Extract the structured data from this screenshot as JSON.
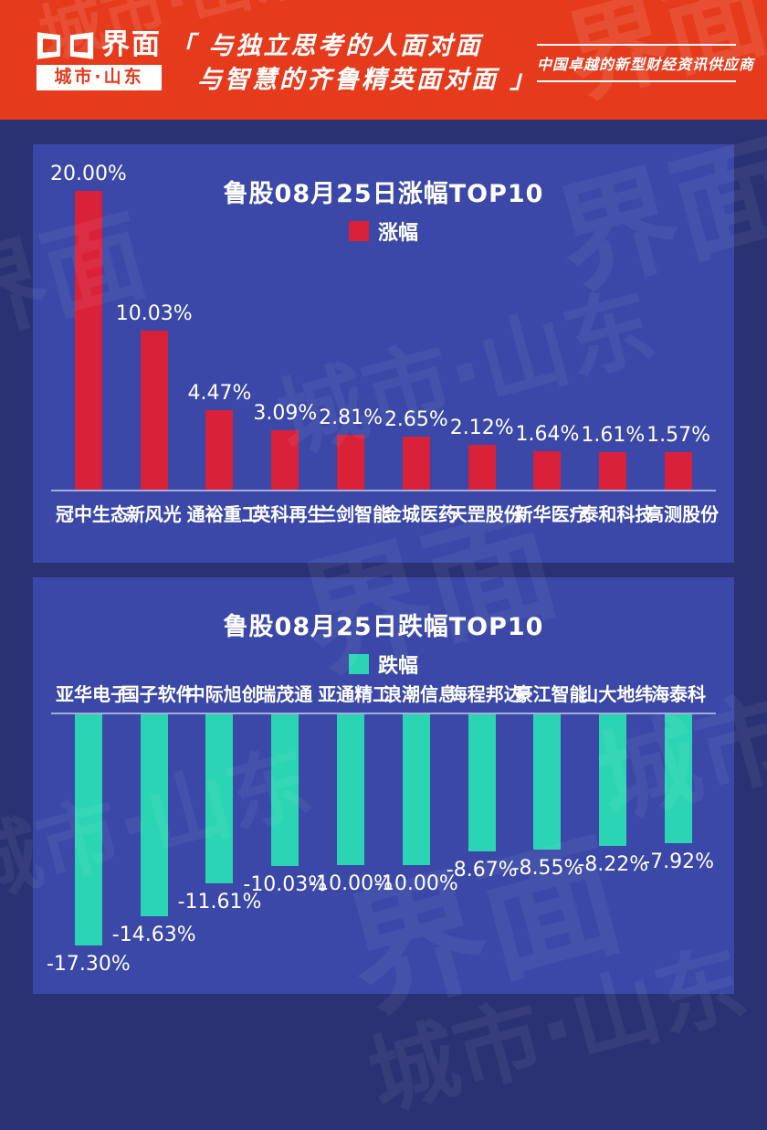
{
  "header": {
    "logo_text": "界面",
    "logo_sub": "城市·山东",
    "slogan_line1": "「 与独立思考的人面对面",
    "slogan_line2": "与智慧的齐鲁精英面对面 」",
    "tagline": "中国卓越的新型财经资讯供应商"
  },
  "colors": {
    "header_red": "#e53a1b",
    "background_navy": "#2b3273",
    "panel_blue": "#3b48a8",
    "gain_red": "#d92139",
    "loss_teal": "#2bd5b3"
  },
  "watermark": {
    "jiemian": "界面",
    "chengshi_shandong": "城市·山东"
  },
  "chart_data": [
    {
      "type": "bar",
      "title": "鲁股08月25日涨幅TOP10",
      "legend": "涨幅",
      "legend_position": "top-center",
      "bar_color": "#d92139",
      "grid": false,
      "ylim": [
        0,
        20
      ],
      "categories": [
        "冠中生态",
        "新风光",
        "通裕重工",
        "英科再生",
        "兰剑智能",
        "金城医药",
        "天罡股份",
        "新华医疗",
        "泰和科技",
        "高测股份"
      ],
      "values": [
        20.0,
        10.03,
        4.47,
        3.09,
        2.81,
        2.65,
        2.12,
        1.64,
        1.61,
        1.57
      ],
      "value_labels": [
        "20.00%",
        "10.03%",
        "4.47%",
        "3.09%",
        "2.81%",
        "2.65%",
        "2.12%",
        "1.64%",
        "1.61%",
        "1.57%"
      ]
    },
    {
      "type": "bar",
      "title": "鲁股08月25日跌幅TOP10",
      "legend": "跌幅",
      "legend_position": "top-center",
      "bar_color": "#2bd5b3",
      "grid": false,
      "ylim": [
        -17.3,
        0
      ],
      "categories": [
        "亚华电子",
        "国子软件",
        "中际旭创",
        "瑞茂通",
        "亚通精工",
        "浪潮信息",
        "海程邦达",
        "豪江智能",
        "山大地纬",
        "海泰科"
      ],
      "values": [
        -17.3,
        -14.63,
        -11.61,
        -10.03,
        -10.0,
        -10.0,
        -8.67,
        -8.55,
        -8.22,
        -7.92
      ],
      "value_labels": [
        "-17.30%",
        "-14.63%",
        "-11.61%",
        "-10.03%",
        "-10.00%",
        "-10.00%",
        "-8.67%",
        "-8.55%",
        "-8.22%",
        "-7.92%"
      ]
    }
  ]
}
